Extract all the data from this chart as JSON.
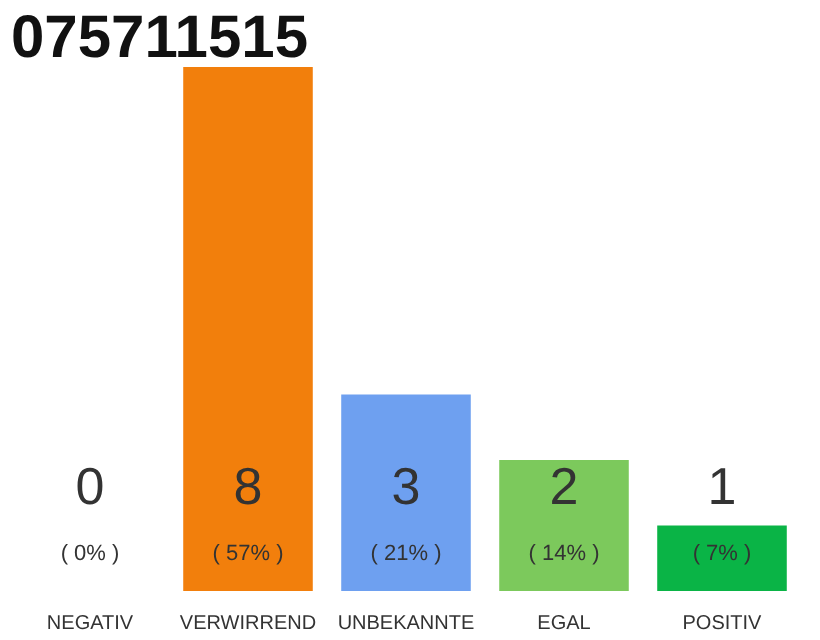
{
  "chart_data": {
    "type": "bar",
    "title": "075711515",
    "categories": [
      "NEGATIV",
      "VERWIRREND",
      "UNBEKANNTE",
      "EGAL",
      "POSITIV"
    ],
    "values": [
      0,
      8,
      3,
      2,
      1
    ],
    "colors": [
      "#cccccc",
      "#f27f0c",
      "#6ea0f0",
      "#7cc95c",
      "#0ab446"
    ],
    "value_labels": [
      "0\n( 0% )",
      "8\n( 57% )",
      "3\n( 21% )",
      "2\n( 14% )",
      "1\n( 7% )"
    ],
    "ylim": [
      0,
      8
    ],
    "tick_labels": "x"
  }
}
